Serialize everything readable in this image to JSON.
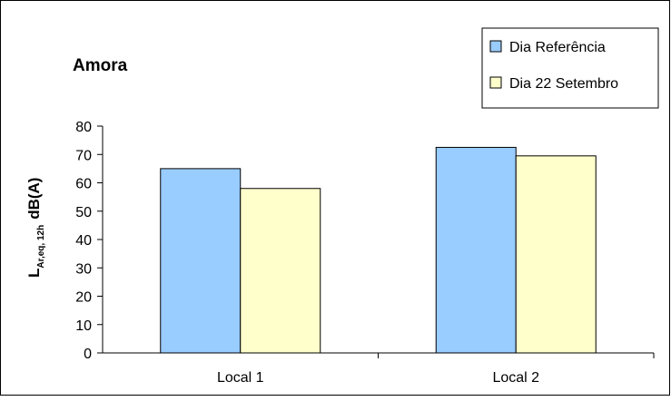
{
  "chart_data": {
    "type": "bar",
    "title": "Amora",
    "ylabel_main": "L",
    "ylabel_subscript": "Ar,eq, 12h",
    "ylabel_unit": "dB(A)",
    "xlabel": "",
    "categories": [
      "Local 1",
      "Local 2"
    ],
    "ylim": [
      0,
      80
    ],
    "yticks": [
      0,
      10,
      20,
      30,
      40,
      50,
      60,
      70,
      80
    ],
    "grid": false,
    "legend_position": "top-right",
    "series": [
      {
        "name": "Dia Referência",
        "values": [
          65,
          72.5
        ],
        "color": "#99ccff"
      },
      {
        "name": "Dia 22 Setembro",
        "values": [
          58,
          69.5
        ],
        "color": "#ffffcc"
      }
    ]
  }
}
